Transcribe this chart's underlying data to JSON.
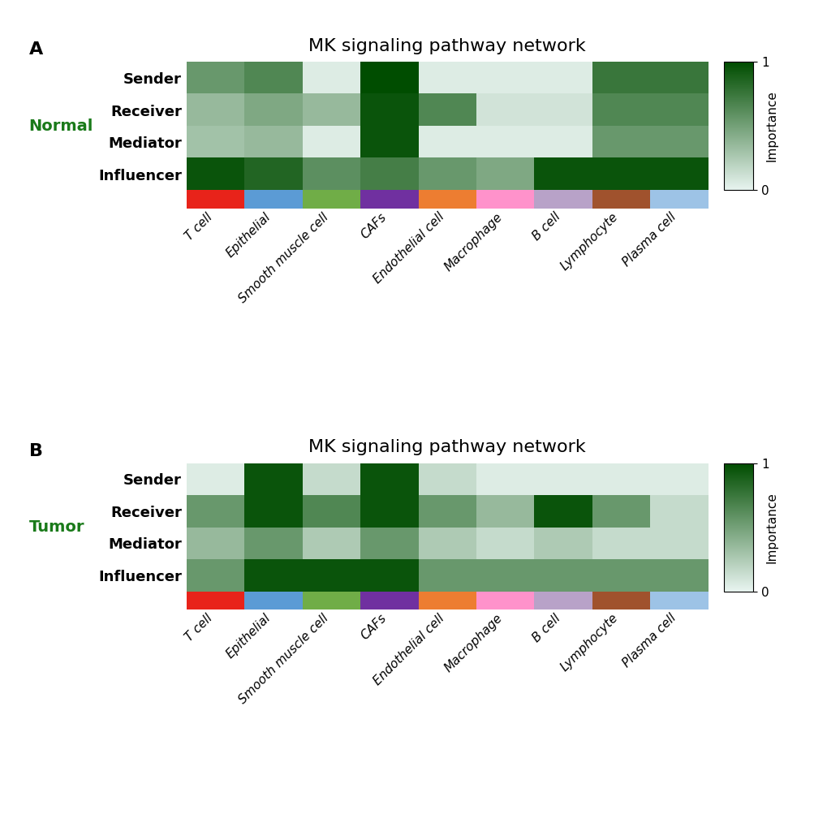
{
  "title": "MK signaling pathway network",
  "row_labels": [
    "Sender",
    "Receiver",
    "Mediator",
    "Influencer"
  ],
  "col_labels": [
    "T cell",
    "Epithelial",
    "Smooth muscle cell",
    "CAFs",
    "Endothelial cell",
    "Macrophage",
    "B cell",
    "Lymphocyte",
    "Plasma cell"
  ],
  "normal_data": [
    [
      0.55,
      0.65,
      0.05,
      1.0,
      0.05,
      0.05,
      0.05,
      0.75,
      0.75
    ],
    [
      0.35,
      0.45,
      0.35,
      0.95,
      0.65,
      0.1,
      0.1,
      0.65,
      0.65
    ],
    [
      0.3,
      0.35,
      0.05,
      0.95,
      0.05,
      0.05,
      0.05,
      0.55,
      0.55
    ],
    [
      0.95,
      0.85,
      0.6,
      0.7,
      0.55,
      0.45,
      0.95,
      0.95,
      0.95
    ]
  ],
  "tumor_data": [
    [
      0.05,
      0.95,
      0.15,
      0.95,
      0.15,
      0.05,
      0.05,
      0.05,
      0.05
    ],
    [
      0.55,
      0.95,
      0.65,
      0.95,
      0.55,
      0.35,
      0.95,
      0.55,
      0.15
    ],
    [
      0.35,
      0.55,
      0.25,
      0.55,
      0.25,
      0.15,
      0.25,
      0.15,
      0.15
    ],
    [
      0.55,
      0.95,
      0.95,
      0.95,
      0.55,
      0.55,
      0.55,
      0.55,
      0.55
    ]
  ],
  "col_colors": [
    "#e8231a",
    "#5b9bd5",
    "#70ad47",
    "#7030a0",
    "#ed7d31",
    "#ff92cb",
    "#b8a2c8",
    "#a0522d",
    "#9dc3e6"
  ],
  "label_A": "A",
  "label_B": "B",
  "group_A_label": "Normal",
  "group_B_label": "Tumor",
  "group_label_color": "#1a7a1a",
  "colorbar_label": "Importance",
  "cmap_colors": [
    "#d6ede8",
    "#004d00"
  ],
  "background_color": "#ffffff"
}
